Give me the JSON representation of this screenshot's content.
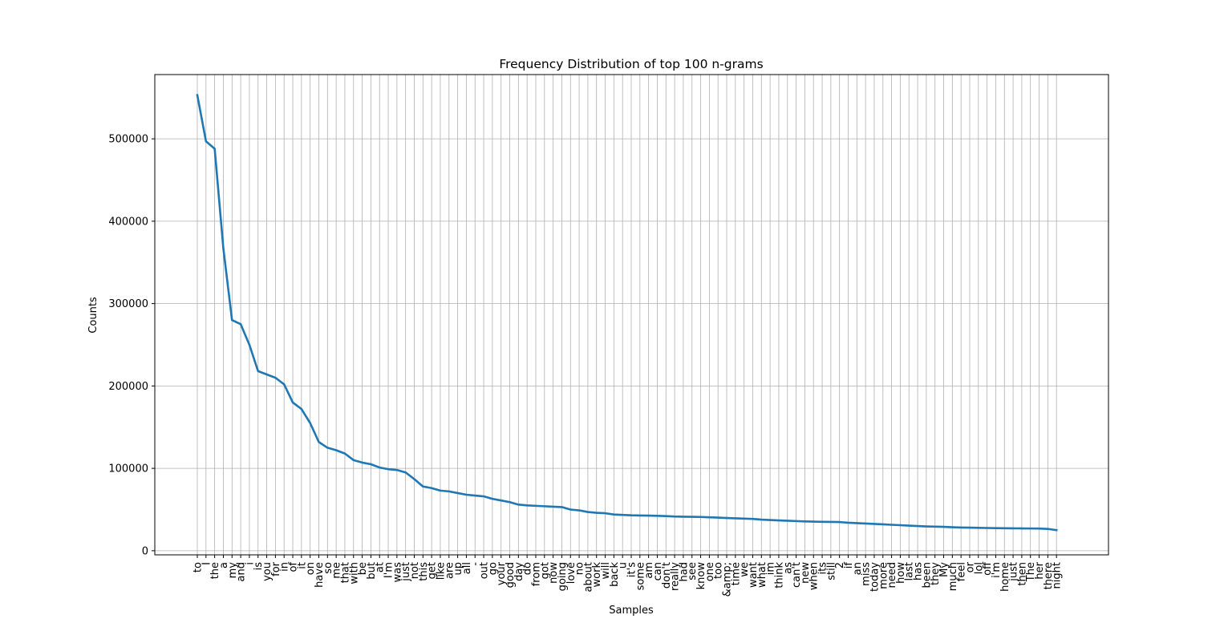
{
  "chart_data": {
    "type": "line",
    "title": "Frequency Distribution of top 100 n-grams",
    "xlabel": "Samples",
    "ylabel": "Counts",
    "ylim": [
      -5000,
      578000
    ],
    "yticks": [
      0,
      100000,
      200000,
      300000,
      400000,
      500000
    ],
    "grid": true,
    "line_color": "#1f77b4",
    "categories": [
      "to",
      "I",
      "the",
      "a",
      "my",
      "and",
      "i",
      "is",
      "you",
      "for",
      "in",
      "of",
      "it",
      "on",
      "have",
      "so",
      "me",
      "that",
      "with",
      "be",
      "but",
      "at",
      "I'm",
      "was",
      "just",
      "not",
      "this",
      "get",
      "like",
      "are",
      "up",
      "all",
      "-",
      "out",
      "go",
      "your",
      "good",
      "day",
      "do",
      "from",
      "got",
      "now",
      "going",
      "love",
      "no",
      "about",
      "work",
      "will",
      "back",
      "u",
      "it's",
      "some",
      "am",
      "can",
      "don't",
      "really",
      "had",
      "see",
      "know",
      "one",
      "too",
      "&amp;",
      "time",
      "we",
      "want",
      "what",
      "im",
      "think",
      "as",
      "can't",
      "new",
      "when",
      "its",
      "still",
      "2",
      "if",
      "an",
      "miss",
      "today",
      "more",
      "need",
      "how",
      "last",
      "has",
      "been",
      "they",
      "My",
      "much",
      "feel",
      "or",
      "lol",
      "off",
      "i'm",
      "home",
      "just",
      "then",
      "The",
      "her",
      "there",
      "night"
    ],
    "values": [
      553000,
      497000,
      488000,
      367000,
      280000,
      275000,
      250000,
      218000,
      214000,
      210000,
      202000,
      180000,
      172000,
      155000,
      132000,
      125000,
      122000,
      118000,
      110000,
      107000,
      105000,
      101000,
      99000,
      98000,
      95000,
      87000,
      78000,
      76000,
      73000,
      72000,
      70000,
      68000,
      67000,
      66000,
      63000,
      61000,
      59000,
      56000,
      55000,
      54500,
      54000,
      53500,
      53000,
      50000,
      49000,
      47000,
      46000,
      45500,
      44000,
      43500,
      43000,
      42800,
      42600,
      42400,
      42000,
      41500,
      41300,
      41200,
      41000,
      40600,
      40200,
      39700,
      39300,
      39000,
      38600,
      37800,
      37300,
      36800,
      36400,
      36000,
      35600,
      35300,
      35100,
      35000,
      34800,
      34000,
      33500,
      33000,
      32500,
      32000,
      31500,
      31000,
      30500,
      30000,
      29500,
      29200,
      29000,
      28500,
      28200,
      28000,
      27800,
      27600,
      27400,
      27300,
      27200,
      27100,
      27000,
      26900,
      26500,
      25000
    ]
  }
}
